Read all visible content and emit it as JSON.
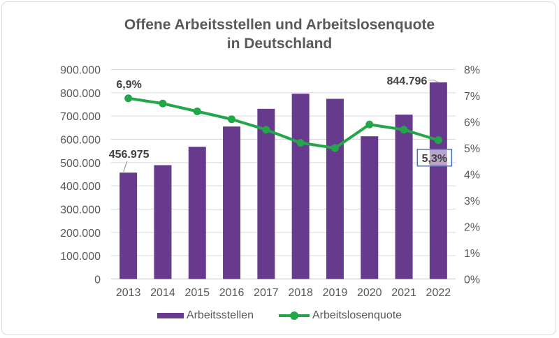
{
  "chart_data": {
    "type": "bar+line",
    "title_line1": "Offene Arbeitsstellen und Arbeitslosenquote",
    "title_line2": "in Deutschland",
    "categories": [
      "2013",
      "2014",
      "2015",
      "2016",
      "2017",
      "2018",
      "2019",
      "2020",
      "2021",
      "2022"
    ],
    "series": [
      {
        "name": "Arbeitsstellen",
        "type": "bar",
        "axis": "left",
        "color": "#673a8e",
        "values": [
          456975,
          489000,
          568000,
          655000,
          731000,
          796000,
          774000,
          613000,
          706000,
          844796
        ]
      },
      {
        "name": "Arbeitslosenquote",
        "type": "line",
        "axis": "right",
        "color": "#23a64a",
        "unit": "%",
        "values": [
          6.9,
          6.7,
          6.4,
          6.1,
          5.7,
          5.2,
          5.0,
          5.9,
          5.7,
          5.3
        ]
      }
    ],
    "y_left": {
      "ylim": [
        0,
        900000
      ],
      "ticks": [
        "0",
        "100.000",
        "200.000",
        "300.000",
        "400.000",
        "500.000",
        "600.000",
        "700.000",
        "800.000",
        "900.000"
      ]
    },
    "y_right": {
      "ylim": [
        0,
        8
      ],
      "ticks": [
        "0%",
        "1%",
        "2%",
        "3%",
        "4%",
        "5%",
        "6%",
        "7%",
        "8%"
      ]
    },
    "data_labels": [
      {
        "series": "Arbeitsstellen",
        "category": "2013",
        "text": "456.975"
      },
      {
        "series": "Arbeitsstellen",
        "category": "2022",
        "text": "844.796"
      },
      {
        "series": "Arbeitslosenquote",
        "category": "2013",
        "text": "6,9%"
      },
      {
        "series": "Arbeitslosenquote",
        "category": "2022",
        "text": "5,3%",
        "boxed": true,
        "box_color": "#4472c4"
      }
    ],
    "grid": true,
    "legend_position": "bottom",
    "xlabel": "",
    "ylabel": ""
  },
  "legend": [
    {
      "label": "Arbeitsstellen"
    },
    {
      "label": "Arbeitslosenquote"
    }
  ]
}
